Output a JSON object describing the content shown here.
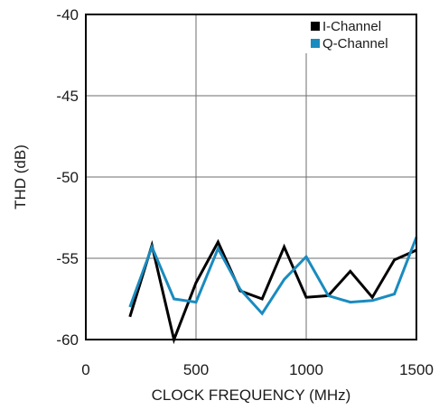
{
  "colors": {
    "i_channel": "#000000",
    "q_channel": "#1a8bbf",
    "grid": "#6e6e6e",
    "frame": "#000000"
  },
  "chart_data": {
    "type": "line",
    "title": "",
    "xlabel": "CLOCK FREQUENCY (MHz)",
    "ylabel": "THD (dB)",
    "xlim": [
      0,
      1500
    ],
    "ylim": [
      -60,
      -40
    ],
    "x_ticks": [
      0,
      500,
      1000,
      1500
    ],
    "x_tick_labels": [
      "0",
      "500",
      "1000",
      "1500"
    ],
    "y_ticks": [
      -40,
      -45,
      -50,
      -55,
      -60
    ],
    "y_tick_labels": [
      "-40",
      "-45",
      "-50",
      "-55",
      "-60"
    ],
    "grid": true,
    "legend_position": "top-right",
    "series": [
      {
        "name": "I-Channel",
        "color": "#000000",
        "x": [
          200,
          300,
          400,
          500,
          600,
          700,
          800,
          900,
          1000,
          1100,
          1200,
          1300,
          1400,
          1500
        ],
        "y": [
          -58.6,
          -54.2,
          -60.0,
          -56.5,
          -54.0,
          -57.0,
          -57.5,
          -54.3,
          -57.4,
          -57.3,
          -55.8,
          -57.4,
          -55.1,
          -54.5
        ]
      },
      {
        "name": "Q-Channel",
        "color": "#1a8bbf",
        "x": [
          200,
          300,
          400,
          500,
          600,
          700,
          800,
          900,
          1000,
          1100,
          1200,
          1300,
          1400,
          1500
        ],
        "y": [
          -58.0,
          -54.3,
          -57.5,
          -57.7,
          -54.4,
          -56.9,
          -58.4,
          -56.3,
          -54.9,
          -57.3,
          -57.7,
          -57.6,
          -57.2,
          -53.7
        ]
      }
    ]
  }
}
